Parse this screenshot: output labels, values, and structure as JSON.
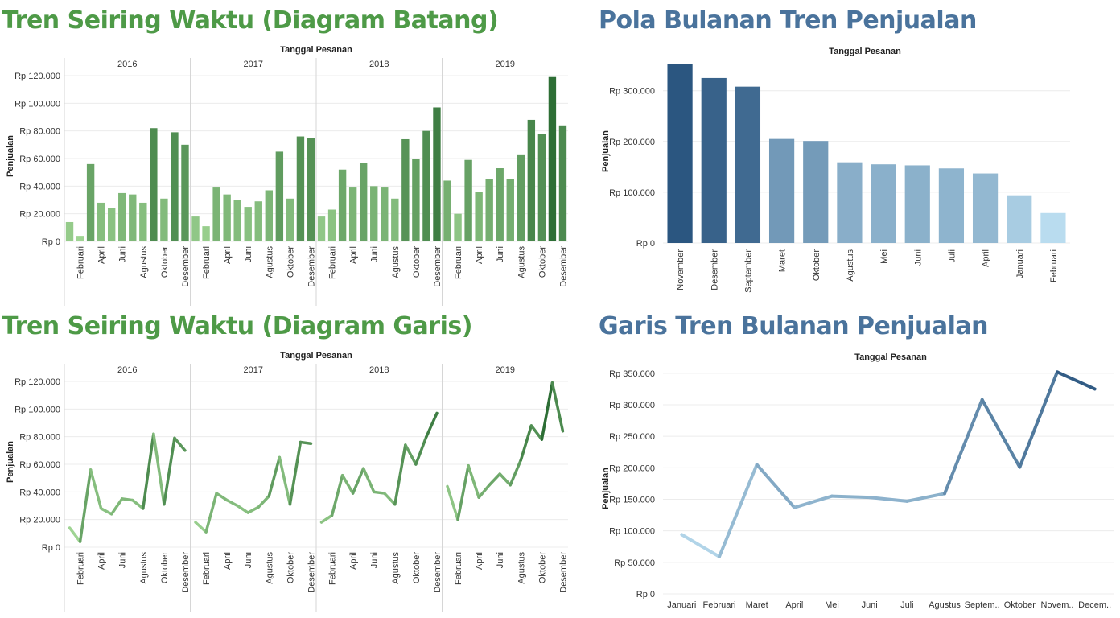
{
  "colors": {
    "green_title": "#4e9a47",
    "blue_title": "#4a739c",
    "green_light": "#a3d896",
    "green_dark": "#2d6e35",
    "blue_light": "#b9dcef",
    "blue_dark": "#2b5680",
    "grid": "#ececec",
    "divider": "#d6d6d6"
  },
  "panels": {
    "tl": {
      "title": "Tren Seiring Waktu (Diagram Batang)"
    },
    "tr": {
      "title": "Pola Bulanan Tren Penjualan"
    },
    "bl": {
      "title": "Tren Seiring Waktu (Diagram Garis)"
    },
    "br": {
      "title": "Garis Tren Bulanan Penjualan"
    }
  },
  "chart_data": [
    {
      "id": "tl",
      "type": "bar",
      "title": "Tren Seiring Waktu (Diagram Batang)",
      "header": "Tanggal Pesanan",
      "ylabel": "Penjualan",
      "ylim": [
        0,
        120000
      ],
      "yticks": [
        0,
        20000,
        40000,
        60000,
        80000,
        100000,
        120000
      ],
      "ytick_labels": [
        "Rp 0",
        "Rp 20.000",
        "Rp 40.000",
        "Rp 60.000",
        "Rp 80.000",
        "Rp 100.000",
        "Rp 120.000"
      ],
      "grid": true,
      "panels": [
        {
          "year": "2016",
          "values": [
            14000,
            4000,
            56000,
            28000,
            24000,
            35000,
            34000,
            28000,
            82000,
            31000,
            79000,
            70000
          ]
        },
        {
          "year": "2017",
          "values": [
            18000,
            11000,
            39000,
            34000,
            30000,
            25000,
            29000,
            37000,
            65000,
            31000,
            76000,
            75000
          ]
        },
        {
          "year": "2018",
          "values": [
            18000,
            23000,
            52000,
            39000,
            57000,
            40000,
            39000,
            31000,
            74000,
            60000,
            80000,
            97000
          ]
        },
        {
          "year": "2019",
          "values": [
            44000,
            20000,
            59000,
            36000,
            45000,
            53000,
            45000,
            63000,
            88000,
            78000,
            119000,
            84000
          ]
        }
      ],
      "x_tick_labels": [
        "Februari",
        "April",
        "Juni",
        "Agustus",
        "Oktober",
        "Desember"
      ]
    },
    {
      "id": "tr",
      "type": "bar",
      "title": "Pola Bulanan Tren Penjualan",
      "header": "Tanggal Pesanan",
      "ylabel": "Penjualan",
      "ylim": [
        0,
        355000
      ],
      "yticks": [
        0,
        100000,
        200000,
        300000
      ],
      "ytick_labels": [
        "Rp 0",
        "Rp 100.000",
        "Rp 200.000",
        "Rp 300.000"
      ],
      "grid": true,
      "categories": [
        "November",
        "Desember",
        "September",
        "Maret",
        "Oktober",
        "Agustus",
        "Mei",
        "Juni",
        "Juli",
        "April",
        "Januari",
        "Februari"
      ],
      "values": [
        352000,
        325000,
        308000,
        205000,
        201000,
        159000,
        155000,
        153000,
        147000,
        137000,
        94000,
        59000
      ]
    },
    {
      "id": "bl",
      "type": "line",
      "title": "Tren Seiring Waktu (Diagram Garis)",
      "header": "Tanggal Pesanan",
      "ylabel": "Penjualan",
      "ylim": [
        0,
        120000
      ],
      "yticks": [
        0,
        20000,
        40000,
        60000,
        80000,
        100000,
        120000
      ],
      "ytick_labels": [
        "Rp 0",
        "Rp 20.000",
        "Rp 40.000",
        "Rp 60.000",
        "Rp 80.000",
        "Rp 100.000",
        "Rp 120.000"
      ],
      "grid": true,
      "panels": [
        {
          "year": "2016",
          "values": [
            14000,
            4000,
            56000,
            28000,
            24000,
            35000,
            34000,
            28000,
            82000,
            31000,
            79000,
            70000
          ]
        },
        {
          "year": "2017",
          "values": [
            18000,
            11000,
            39000,
            34000,
            30000,
            25000,
            29000,
            37000,
            65000,
            31000,
            76000,
            75000
          ]
        },
        {
          "year": "2018",
          "values": [
            18000,
            23000,
            52000,
            39000,
            57000,
            40000,
            39000,
            31000,
            74000,
            60000,
            80000,
            97000
          ]
        },
        {
          "year": "2019",
          "values": [
            44000,
            20000,
            59000,
            36000,
            45000,
            53000,
            45000,
            63000,
            88000,
            78000,
            119000,
            84000
          ]
        }
      ],
      "x_tick_labels": [
        "Februari",
        "April",
        "Juni",
        "Agustus",
        "Oktober",
        "Desember"
      ]
    },
    {
      "id": "br",
      "type": "line",
      "title": "Garis Tren Bulanan Penjualan",
      "header": "Tanggal Pesanan",
      "ylabel": "Penjualan",
      "ylim": [
        0,
        360000
      ],
      "yticks": [
        0,
        50000,
        100000,
        150000,
        200000,
        250000,
        300000,
        350000
      ],
      "ytick_labels": [
        "Rp 0",
        "Rp 50.000",
        "Rp 100.000",
        "Rp 150.000",
        "Rp 200.000",
        "Rp 250.000",
        "Rp 300.000",
        "Rp 350.000"
      ],
      "grid": true,
      "categories": [
        "Januari",
        "Februari",
        "Maret",
        "April",
        "Mei",
        "Juni",
        "Juli",
        "Agustus",
        "Septem..",
        "Oktober",
        "Novem..",
        "Decem.."
      ],
      "values": [
        94000,
        59000,
        205000,
        137000,
        155000,
        153000,
        147000,
        159000,
        308000,
        201000,
        352000,
        325000
      ]
    }
  ]
}
